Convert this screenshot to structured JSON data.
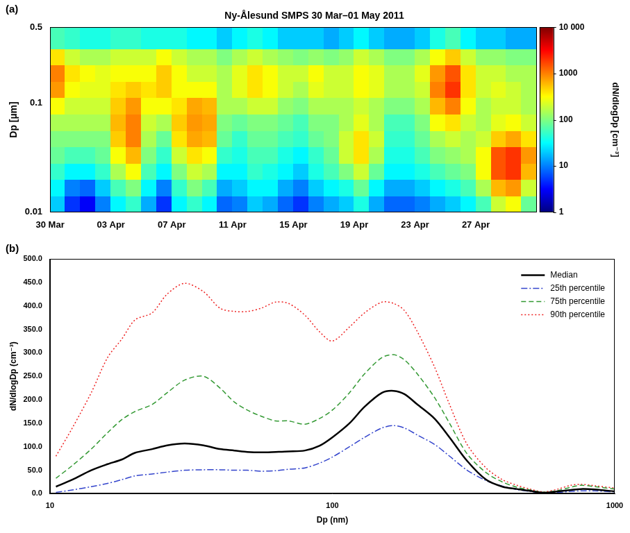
{
  "chart_data": [
    {
      "type": "heatmap",
      "title": "Ny-Ålesund SMPS 30 Mar–01 May 2011",
      "panel_label": "(a)",
      "ylabel": "Dp [µm]",
      "log": "y",
      "grid": false,
      "xlim": [
        0,
        32
      ],
      "xticks": [
        {
          "value": 0,
          "label": "30 Mar"
        },
        {
          "value": 4,
          "label": "03 Apr"
        },
        {
          "value": 8,
          "label": "07 Apr"
        },
        {
          "value": 12,
          "label": "11 Apr"
        },
        {
          "value": 16,
          "label": "15 Apr"
        },
        {
          "value": 20,
          "label": "19 Apr"
        },
        {
          "value": 24,
          "label": "23 Apr"
        },
        {
          "value": 28,
          "label": "27 Apr"
        }
      ],
      "ylim": [
        0.01,
        0.5
      ],
      "yticks": [
        0.01,
        0.1,
        0.5
      ],
      "x_edges": [
        0,
        1,
        2,
        3,
        4,
        5,
        6,
        7,
        8,
        9,
        10,
        11,
        12,
        13,
        14,
        15,
        16,
        17,
        18,
        19,
        20,
        21,
        22,
        23,
        24,
        25,
        26,
        27,
        28,
        29,
        30,
        31,
        32
      ],
      "y_edges": [
        0.01,
        0.0141,
        0.02,
        0.0283,
        0.04,
        0.0566,
        0.08,
        0.113,
        0.16,
        0.226,
        0.32,
        0.5
      ],
      "cells": [
        [
          20,
          5,
          3,
          10,
          30,
          50,
          15,
          5,
          30,
          50,
          30,
          8,
          10,
          20,
          15,
          8,
          5,
          10,
          15,
          20,
          40,
          15,
          8,
          8,
          10,
          15,
          20,
          30,
          60,
          200,
          300,
          80
        ],
        [
          30,
          10,
          8,
          20,
          60,
          100,
          30,
          10,
          50,
          100,
          60,
          15,
          20,
          30,
          30,
          15,
          10,
          20,
          30,
          40,
          80,
          30,
          15,
          15,
          20,
          30,
          40,
          60,
          150,
          600,
          800,
          200
        ],
        [
          50,
          30,
          30,
          50,
          150,
          300,
          60,
          30,
          100,
          200,
          150,
          30,
          30,
          50,
          40,
          30,
          20,
          40,
          60,
          100,
          200,
          80,
          30,
          30,
          40,
          60,
          80,
          100,
          300,
          1500,
          2000,
          600
        ],
        [
          80,
          60,
          60,
          80,
          300,
          600,
          100,
          50,
          200,
          400,
          300,
          50,
          40,
          60,
          60,
          40,
          30,
          50,
          80,
          200,
          400,
          150,
          40,
          40,
          60,
          100,
          120,
          150,
          300,
          1500,
          2000,
          800
        ],
        [
          100,
          100,
          100,
          100,
          500,
          1000,
          150,
          80,
          400,
          700,
          600,
          80,
          50,
          80,
          80,
          60,
          50,
          80,
          100,
          200,
          400,
          200,
          50,
          50,
          80,
          150,
          200,
          150,
          200,
          500,
          700,
          400
        ],
        [
          150,
          150,
          150,
          150,
          600,
          1000,
          200,
          150,
          500,
          800,
          700,
          100,
          80,
          100,
          100,
          80,
          60,
          100,
          100,
          150,
          250,
          150,
          60,
          60,
          100,
          300,
          400,
          200,
          150,
          250,
          300,
          200
        ],
        [
          300,
          200,
          200,
          200,
          500,
          800,
          300,
          300,
          400,
          700,
          600,
          150,
          150,
          200,
          200,
          120,
          100,
          150,
          150,
          150,
          200,
          150,
          100,
          100,
          150,
          600,
          1000,
          300,
          150,
          200,
          200,
          150
        ],
        [
          800,
          300,
          250,
          250,
          400,
          500,
          400,
          500,
          300,
          300,
          300,
          150,
          250,
          400,
          300,
          200,
          150,
          250,
          200,
          200,
          300,
          250,
          150,
          150,
          200,
          1000,
          2000,
          400,
          200,
          250,
          200,
          150
        ],
        [
          1000,
          400,
          300,
          250,
          300,
          300,
          300,
          500,
          300,
          200,
          200,
          150,
          250,
          400,
          300,
          200,
          200,
          300,
          200,
          200,
          300,
          250,
          150,
          150,
          250,
          800,
          1500,
          400,
          200,
          200,
          150,
          150
        ],
        [
          400,
          200,
          150,
          150,
          200,
          200,
          200,
          300,
          200,
          150,
          150,
          100,
          150,
          200,
          150,
          120,
          100,
          120,
          100,
          120,
          200,
          150,
          100,
          100,
          150,
          300,
          500,
          200,
          120,
          120,
          100,
          100
        ],
        [
          60,
          50,
          40,
          40,
          50,
          50,
          40,
          40,
          40,
          30,
          30,
          20,
          30,
          40,
          30,
          20,
          20,
          20,
          15,
          20,
          30,
          20,
          15,
          15,
          20,
          40,
          60,
          30,
          20,
          20,
          15,
          15
        ]
      ],
      "colorbar": {
        "label": "dN/dlogDp [cm⁻³]",
        "log": true,
        "range": [
          1,
          10000
        ],
        "ticks": [
          1,
          10,
          100,
          1000,
          {
            "value": 10000,
            "label": "10 000"
          }
        ]
      }
    },
    {
      "type": "line",
      "panel_label": "(b)",
      "xlabel": "Dp (nm)",
      "ylabel": "dN/dlogDp (cm⁻³)",
      "log": "x",
      "grid": false,
      "legend": "upper right",
      "xlim": [
        10,
        1000
      ],
      "xticks": [
        10,
        100,
        1000
      ],
      "ylim": [
        0,
        500
      ],
      "yticks": [
        {
          "value": 0,
          "label": "0.0"
        },
        {
          "value": 50,
          "label": "50.0"
        },
        {
          "value": 100,
          "label": "100.0"
        },
        {
          "value": 150,
          "label": "150.0"
        },
        {
          "value": 200,
          "label": "200.0"
        },
        {
          "value": 250,
          "label": "250.0"
        },
        {
          "value": 300,
          "label": "300.0"
        },
        {
          "value": 350,
          "label": "350.0"
        },
        {
          "value": 400,
          "label": "400.0"
        },
        {
          "value": 450,
          "label": "450.0"
        },
        {
          "value": 500,
          "label": "500.0"
        }
      ],
      "x": [
        10.5,
        12,
        14,
        16,
        18,
        20,
        23,
        26,
        30,
        35,
        40,
        45,
        50,
        56,
        63,
        70,
        80,
        90,
        100,
        115,
        130,
        150,
        165,
        180,
        200,
        230,
        260,
        300,
        350,
        400,
        450,
        500,
        560,
        630,
        700,
        760,
        850,
        1000
      ],
      "series": [
        {
          "name": "Median",
          "color": "#000000",
          "line_style": "solid",
          "values": [
            15,
            30,
            50,
            63,
            73,
            87,
            95,
            103,
            107,
            103,
            95,
            92,
            89,
            88,
            89,
            90,
            92,
            102,
            120,
            150,
            185,
            215,
            219,
            212,
            190,
            160,
            120,
            70,
            30,
            15,
            10,
            6,
            2,
            5,
            8,
            10,
            9,
            5
          ]
        },
        {
          "name": "25th percentile",
          "color": "#3344cc",
          "line_style": "dashdot",
          "values": [
            3,
            8,
            15,
            22,
            30,
            38,
            42,
            46,
            50,
            51,
            51,
            50,
            50,
            48,
            49,
            52,
            55,
            65,
            78,
            100,
            120,
            140,
            145,
            140,
            125,
            105,
            80,
            50,
            28,
            16,
            9,
            5,
            2,
            3,
            5,
            6,
            6,
            4
          ]
        },
        {
          "name": "75th percentile",
          "color": "#339933",
          "line_style": "dashed",
          "values": [
            33,
            60,
            95,
            130,
            158,
            175,
            190,
            215,
            242,
            250,
            225,
            195,
            178,
            165,
            155,
            155,
            148,
            160,
            178,
            215,
            255,
            290,
            296,
            285,
            255,
            205,
            150,
            85,
            45,
            25,
            14,
            8,
            3,
            7,
            14,
            18,
            15,
            10
          ]
        },
        {
          "name": "90th percentile",
          "color": "#ee2222",
          "line_style": "dotted",
          "values": [
            80,
            140,
            215,
            290,
            330,
            370,
            385,
            425,
            448,
            430,
            395,
            388,
            388,
            395,
            408,
            405,
            380,
            345,
            325,
            355,
            385,
            408,
            405,
            390,
            345,
            270,
            190,
            105,
            55,
            30,
            18,
            10,
            4,
            10,
            18,
            20,
            17,
            12
          ]
        }
      ]
    }
  ]
}
